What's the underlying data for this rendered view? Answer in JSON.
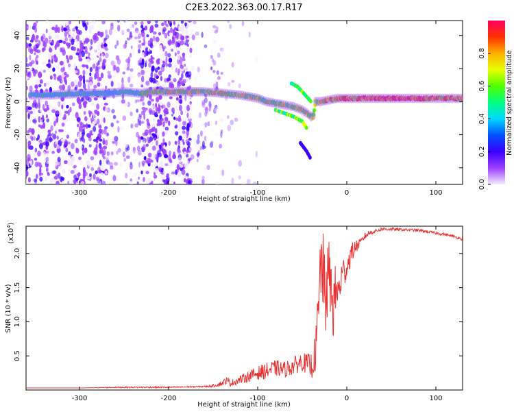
{
  "title": "C2E3.2022.363.00.17.R17",
  "chart_data": [
    {
      "type": "heatmap",
      "xlabel": "Height of straight line (km)",
      "ylabel": "Frequency (Hz)",
      "xlim": [
        -360,
        130
      ],
      "ylim": [
        -50,
        49
      ],
      "x_ticks": [
        -300,
        -200,
        -100,
        0,
        100
      ],
      "y_ticks": [
        -40,
        -20,
        0,
        20,
        40
      ],
      "colorbar": {
        "label": "Normalized spectral amplitude",
        "range": [
          0,
          1
        ],
        "ticks": [
          "0.0",
          "0.2",
          "0.4",
          "0.6",
          "0.8"
        ],
        "colors": [
          "#f4eaff",
          "#9c40ff",
          "#3a00ff",
          "#0050ff",
          "#00d8ff",
          "#00ff80",
          "#50ff00",
          "#e8ff00",
          "#ffb000",
          "#ff3000",
          "#ff0060"
        ]
      },
      "ridge": {
        "x": [
          -355,
          -330,
          -300,
          -270,
          -250,
          -230,
          -220,
          -200,
          -180,
          -160,
          -140,
          -120,
          -100,
          -90,
          -80,
          -70,
          -60,
          -50,
          -42,
          -38,
          -35,
          -30,
          -20,
          -10,
          0,
          20,
          40,
          60,
          80,
          100,
          130
        ],
        "y": [
          4,
          4,
          5,
          5,
          6,
          5,
          6,
          6,
          6,
          6,
          5,
          4,
          2,
          0,
          -1,
          -2,
          -3,
          -5,
          -8,
          -10,
          0,
          0,
          1,
          2,
          2,
          2,
          2,
          2,
          2,
          2,
          2
        ]
      },
      "side_branches": [
        {
          "x": [
            -80,
            -70,
            -60,
            -50,
            -45
          ],
          "y": [
            -5,
            -7,
            -9,
            -12,
            -16
          ]
        },
        {
          "x": [
            -62,
            -55,
            -50,
            -45,
            -40
          ],
          "y": [
            11,
            9,
            6,
            3,
            0
          ]
        },
        {
          "x": [
            -52,
            -45,
            -40
          ],
          "y": [
            -25,
            -30,
            -35
          ]
        }
      ]
    },
    {
      "type": "line",
      "xlabel": "Height of straight line (km)",
      "ylabel": "SNR (10 * v/v)",
      "scale_label": "(x10",
      "scale_exponent": "4",
      "scale_close": ")",
      "xlim": [
        -360,
        130
      ],
      "ylim": [
        0,
        2.4
      ],
      "x_ticks": [
        -300,
        -200,
        -100,
        0,
        100
      ],
      "y_ticks": [
        "0.5",
        "1.0",
        "1.5",
        "2.0"
      ],
      "series": [
        {
          "color": "#e83030",
          "x": [
            -360,
            -300,
            -250,
            -200,
            -160,
            -150,
            -140,
            -135,
            -130,
            -120,
            -110,
            -100,
            -90,
            -80,
            -70,
            -60,
            -50,
            -45,
            -40,
            -35,
            -32,
            -30,
            -28,
            -25,
            -20,
            -15,
            -12,
            -10,
            -5,
            0,
            5,
            10,
            15,
            20,
            25,
            30,
            40,
            60,
            80,
            100,
            110,
            120,
            130
          ],
          "y": [
            0.03,
            0.03,
            0.04,
            0.04,
            0.05,
            0.06,
            0.1,
            0.14,
            0.1,
            0.15,
            0.2,
            0.25,
            0.28,
            0.32,
            0.3,
            0.35,
            0.42,
            0.38,
            0.35,
            0.55,
            1.0,
            1.6,
            2.0,
            1.3,
            1.7,
            1.2,
            1.5,
            1.4,
            1.7,
            1.8,
            2.0,
            2.1,
            2.15,
            2.25,
            2.3,
            2.32,
            2.36,
            2.35,
            2.34,
            2.3,
            2.28,
            2.25,
            2.21
          ],
          "noise": [
            0,
            0,
            0.01,
            0.01,
            0.01,
            0.02,
            0.04,
            0.05,
            0.05,
            0.06,
            0.08,
            0.1,
            0.12,
            0.12,
            0.12,
            0.13,
            0.14,
            0.15,
            0.2,
            0.3,
            0.6,
            0.7,
            0.6,
            0.7,
            0.5,
            0.5,
            0.4,
            0.3,
            0.25,
            0.2,
            0.15,
            0.1,
            0.06,
            0.05,
            0.04,
            0.03,
            0.03,
            0.02,
            0.02,
            0.02,
            0.02,
            0.02,
            0.02
          ]
        }
      ]
    }
  ]
}
